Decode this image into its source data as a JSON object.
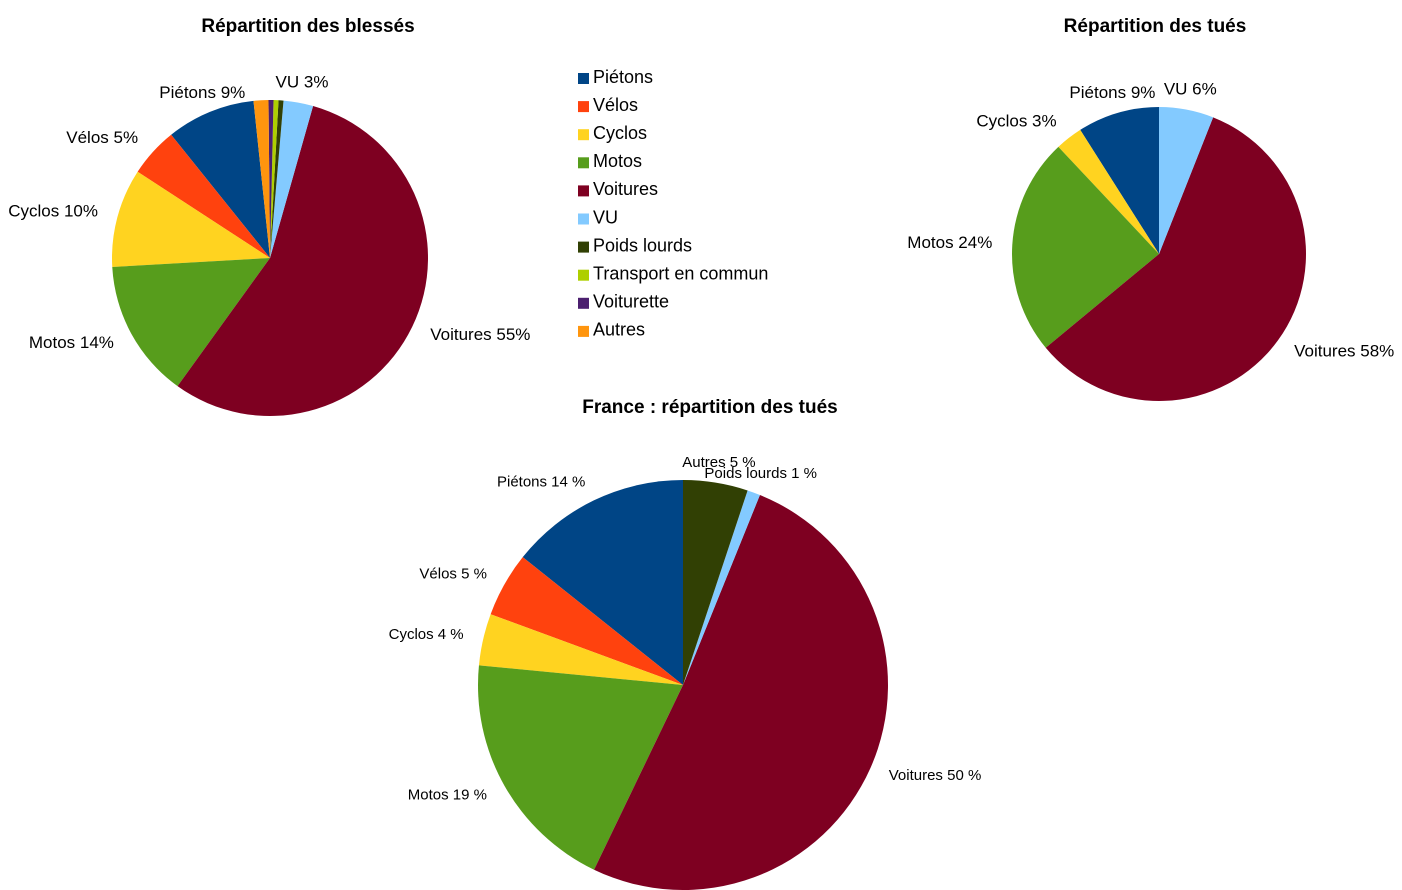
{
  "chart_data": [
    {
      "type": "pie",
      "title": "Répartition des blessés",
      "categories": [
        "Piétons",
        "Vélos",
        "Cyclos",
        "Motos",
        "Voitures",
        "VU",
        "Poids lourds",
        "Transport en commun",
        "Voiturette",
        "Autres"
      ],
      "values": [
        9,
        5,
        10,
        14,
        55,
        3,
        0.5,
        0.5,
        0.5,
        1.5
      ],
      "value_labels": [
        "Piétons 9%",
        "Vélos 5%",
        "Cyclos 10%",
        "Motos 14%",
        "Voitures 55%",
        "VU 3%",
        null,
        null,
        null,
        null
      ],
      "colors": [
        "#004586",
        "#ff420e",
        "#ffd320",
        "#579d1c",
        "#7e0021",
        "#83caff",
        "#314004",
        "#aecf00",
        "#4b1f6f",
        "#ff950e"
      ]
    },
    {
      "type": "pie",
      "title": "Répartition des tués",
      "values": [
        9,
        3,
        24,
        58,
        6
      ],
      "value_labels": [
        "Piétons 9%",
        "Cyclos 3%",
        "Motos 24%",
        "Voitures 58%",
        "VU 6%"
      ],
      "colors": [
        "#004586",
        "#ffd320",
        "#579d1c",
        "#7e0021",
        "#83caff"
      ]
    },
    {
      "type": "pie",
      "title": "France : répartition des tués",
      "values": [
        14,
        5,
        4,
        19,
        50,
        1,
        5
      ],
      "value_labels": [
        "Piétons 14 %",
        "Vélos 5 %",
        "Cyclos 4 %",
        "Motos 19 %",
        "Voitures 50 %",
        "Poids lourds 1 %",
        "Autres 5 %"
      ],
      "colors": [
        "#004586",
        "#ff420e",
        "#ffd320",
        "#579d1c",
        "#7e0021",
        "#83caff",
        "#314004"
      ]
    }
  ]
}
